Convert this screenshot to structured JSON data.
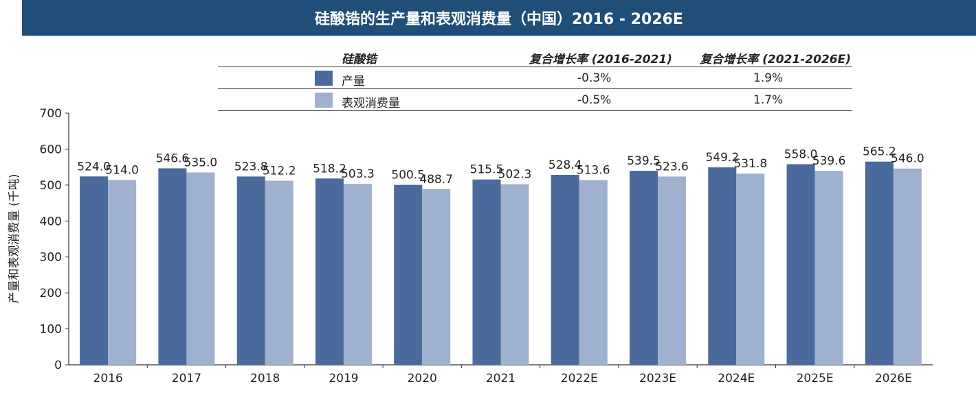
{
  "colors": {
    "title_bg": "#1f4e79",
    "production": "#4a6a9b",
    "consumption": "#9fb1cf"
  },
  "chart_data": {
    "type": "bar",
    "title": "硅酸锆的生产量和表观消费量（中国）2016 - 2026E",
    "ylabel": "产量和表观消费量 (千吨)",
    "ylim": [
      0,
      700
    ],
    "yticks": [
      0,
      100,
      200,
      300,
      400,
      500,
      600,
      700
    ],
    "grid": false,
    "categories": [
      "2016",
      "2017",
      "2018",
      "2019",
      "2020",
      "2021",
      "2022E",
      "2023E",
      "2024E",
      "2025E",
      "2026E"
    ],
    "series": [
      {
        "name": "产量",
        "values": [
          524.0,
          546.6,
          523.8,
          518.2,
          500.5,
          515.5,
          528.4,
          539.5,
          549.2,
          558.0,
          565.2
        ]
      },
      {
        "name": "表观消费量",
        "values": [
          514.0,
          535.0,
          512.2,
          503.3,
          488.7,
          502.3,
          513.6,
          523.6,
          531.8,
          539.6,
          546.0
        ]
      }
    ],
    "legend_table": {
      "header": {
        "label": "硅酸锆",
        "col1": "复合增长率 (2016-2021)",
        "col2": "复合增长率 (2021-2026E)"
      },
      "rows": [
        {
          "label": "产量",
          "cagr1": "-0.3%",
          "cagr2": "1.9%"
        },
        {
          "label": "表观消费量",
          "cagr1": "-0.5%",
          "cagr2": "1.7%"
        }
      ]
    }
  }
}
